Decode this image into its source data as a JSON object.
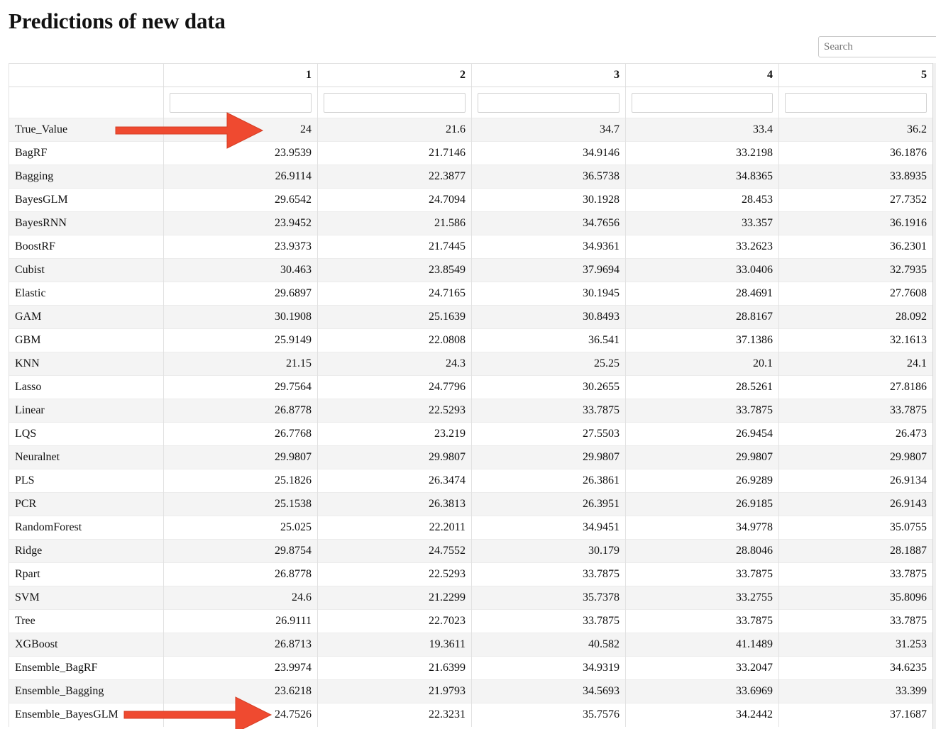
{
  "page": {
    "title": "Predictions of new data",
    "search_placeholder": "Search"
  },
  "table": {
    "columns": [
      "",
      "1",
      "2",
      "3",
      "4",
      "5"
    ],
    "rows": [
      [
        "True_Value",
        "24",
        "21.6",
        "34.7",
        "33.4",
        "36.2"
      ],
      [
        "BagRF",
        "23.9539",
        "21.7146",
        "34.9146",
        "33.2198",
        "36.1876"
      ],
      [
        "Bagging",
        "26.9114",
        "22.3877",
        "36.5738",
        "34.8365",
        "33.8935"
      ],
      [
        "BayesGLM",
        "29.6542",
        "24.7094",
        "30.1928",
        "28.453",
        "27.7352"
      ],
      [
        "BayesRNN",
        "23.9452",
        "21.586",
        "34.7656",
        "33.357",
        "36.1916"
      ],
      [
        "BoostRF",
        "23.9373",
        "21.7445",
        "34.9361",
        "33.2623",
        "36.2301"
      ],
      [
        "Cubist",
        "30.463",
        "23.8549",
        "37.9694",
        "33.0406",
        "32.7935"
      ],
      [
        "Elastic",
        "29.6897",
        "24.7165",
        "30.1945",
        "28.4691",
        "27.7608"
      ],
      [
        "GAM",
        "30.1908",
        "25.1639",
        "30.8493",
        "28.8167",
        "28.092"
      ],
      [
        "GBM",
        "25.9149",
        "22.0808",
        "36.541",
        "37.1386",
        "32.1613"
      ],
      [
        "KNN",
        "21.15",
        "24.3",
        "25.25",
        "20.1",
        "24.1"
      ],
      [
        "Lasso",
        "29.7564",
        "24.7796",
        "30.2655",
        "28.5261",
        "27.8186"
      ],
      [
        "Linear",
        "26.8778",
        "22.5293",
        "33.7875",
        "33.7875",
        "33.7875"
      ],
      [
        "LQS",
        "26.7768",
        "23.219",
        "27.5503",
        "26.9454",
        "26.473"
      ],
      [
        "Neuralnet",
        "29.9807",
        "29.9807",
        "29.9807",
        "29.9807",
        "29.9807"
      ],
      [
        "PLS",
        "25.1826",
        "26.3474",
        "26.3861",
        "26.9289",
        "26.9134"
      ],
      [
        "PCR",
        "25.1538",
        "26.3813",
        "26.3951",
        "26.9185",
        "26.9143"
      ],
      [
        "RandomForest",
        "25.025",
        "22.2011",
        "34.9451",
        "34.9778",
        "35.0755"
      ],
      [
        "Ridge",
        "29.8754",
        "24.7552",
        "30.179",
        "28.8046",
        "28.1887"
      ],
      [
        "Rpart",
        "26.8778",
        "22.5293",
        "33.7875",
        "33.7875",
        "33.7875"
      ],
      [
        "SVM",
        "24.6",
        "21.2299",
        "35.7378",
        "33.2755",
        "35.8096"
      ],
      [
        "Tree",
        "26.9111",
        "22.7023",
        "33.7875",
        "33.7875",
        "33.7875"
      ],
      [
        "XGBoost",
        "26.8713",
        "19.3611",
        "40.582",
        "41.1489",
        "31.253"
      ],
      [
        "Ensemble_BagRF",
        "23.9974",
        "21.6399",
        "34.9319",
        "33.2047",
        "34.6235"
      ],
      [
        "Ensemble_Bagging",
        "23.6218",
        "21.9793",
        "34.5693",
        "33.6969",
        "33.399"
      ],
      [
        "Ensemble_BayesGLM",
        "24.7526",
        "22.3231",
        "35.7576",
        "34.2442",
        "37.1687"
      ]
    ]
  },
  "colors": {
    "annotation_arrow": "#ef4a30",
    "row_stripe": "#f4f4f4"
  },
  "annotations": [
    {
      "icon": "arrow-right-icon",
      "points_to": "True_Value, column 1"
    },
    {
      "icon": "arrow-right-icon",
      "points_to": "Ensemble_BayesGLM, column 1"
    }
  ]
}
